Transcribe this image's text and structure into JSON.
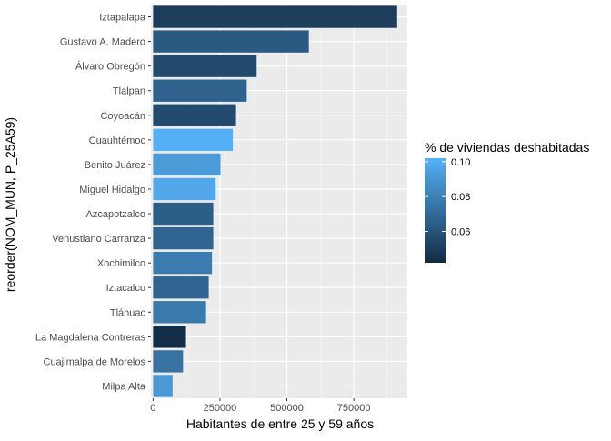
{
  "chart_data": {
    "type": "bar",
    "orientation": "horizontal",
    "xlabel": "Habitantes de entre 25 y 59 años",
    "ylabel": "reorder(NOM_MUN, P_25A59)",
    "xlim": [
      -8000,
      950000
    ],
    "xticks": [
      0,
      250000,
      500000,
      750000
    ],
    "xtick_labels": [
      "0",
      "250000",
      "500000",
      "750000"
    ],
    "grid": true,
    "legend_position": "right",
    "categories": [
      "Iztapalapa",
      "Gustavo A. Madero",
      "Álvaro Obregón",
      "Tlalpan",
      "Coyoacán",
      "Cuauhtémoc",
      "Benito Juárez",
      "Miguel Hidalgo",
      "Azcapotzalco",
      "Venustiano Carranza",
      "Xochimilco",
      "Iztacalco",
      "Tláhuac",
      "La Magdalena Contreras",
      "Cuajimalpa de Morelos",
      "Milpa Alta"
    ],
    "values": [
      912000,
      582000,
      387000,
      350000,
      310000,
      298000,
      252000,
      234000,
      225000,
      225000,
      220000,
      208000,
      198000,
      123000,
      112000,
      73000
    ],
    "fill_values": [
      0.05,
      0.063,
      0.056,
      0.067,
      0.056,
      0.101,
      0.092,
      0.098,
      0.065,
      0.068,
      0.078,
      0.068,
      0.077,
      0.043,
      0.074,
      0.091
    ],
    "legend": {
      "title": "% de viviendas deshabitadas",
      "ticks": [
        0.1,
        0.08,
        0.06
      ],
      "tick_labels": [
        "0.10",
        "0.08",
        "0.06"
      ],
      "range": [
        0.042,
        0.102
      ],
      "color_low": "#132B43",
      "color_high": "#56B1F7"
    },
    "colors": {
      "panel": "#ebebeb",
      "grid_major": "#ffffff",
      "grid_minor": "#f5f5f5",
      "tick_text": "#4d4d4d",
      "tick_mark": "#333333"
    }
  }
}
